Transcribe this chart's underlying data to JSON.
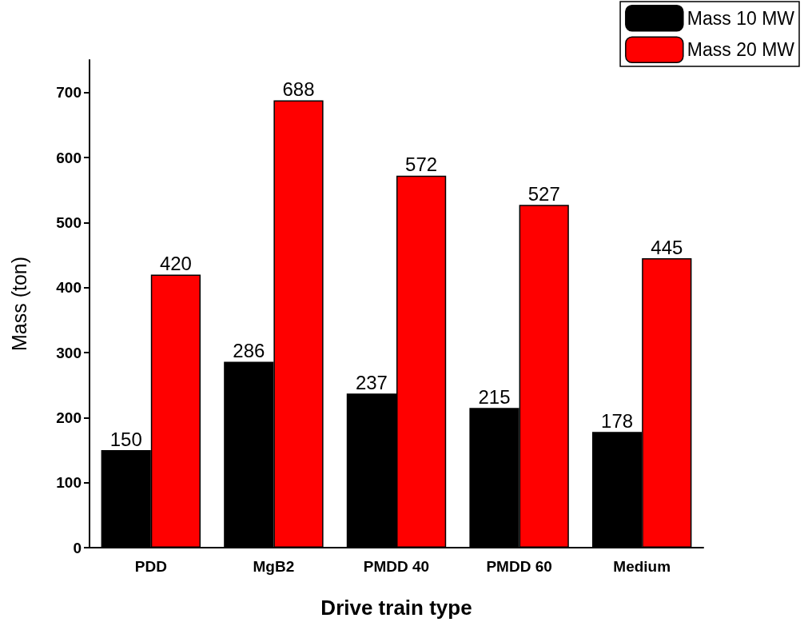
{
  "chart_data": {
    "type": "bar",
    "xlabel": "Drive train type",
    "ylabel": "Mass (ton)",
    "categories": [
      "PDD",
      "MgB2",
      "PMDD 40",
      "PMDD 60",
      "Medium"
    ],
    "series": [
      {
        "name": "Mass 10 MW",
        "color": "#000000",
        "values": [
          150,
          286,
          237,
          215,
          178
        ]
      },
      {
        "name": "Mass 20 MW",
        "color": "#ff0000",
        "values": [
          420,
          688,
          572,
          527,
          445
        ]
      }
    ],
    "ylim": [
      0,
      750
    ],
    "yticks": [
      0,
      100,
      200,
      300,
      400,
      500,
      600,
      700
    ],
    "data_labels": true,
    "legend": "top right",
    "grid": false
  }
}
